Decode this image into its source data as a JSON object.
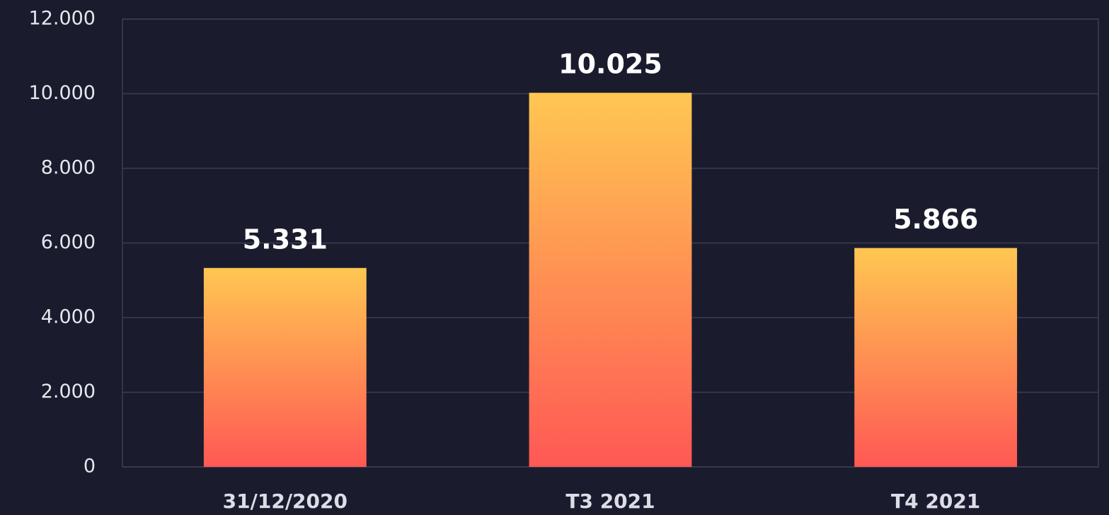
{
  "chart_data": {
    "type": "bar",
    "categories": [
      "31/12/2020",
      "T3 2021",
      "T4 2021"
    ],
    "values": [
      5331,
      10025,
      5866
    ],
    "value_labels": [
      "5.331",
      "10.025",
      "5.866"
    ],
    "ylim": [
      0,
      12000
    ],
    "yticks": [
      0,
      {
        "value": 2000,
        "label": "2.000"
      },
      {
        "value": 4000,
        "label": "4.000"
      },
      {
        "value": 6000,
        "label": "6.000"
      },
      {
        "value": 8000,
        "label": "8.000"
      },
      {
        "value": 10000,
        "label": "10.000"
      },
      {
        "value": 12000,
        "label": "12.000"
      }
    ],
    "grid": true,
    "color": [
      "#ffc752",
      "#ff5854"
    ]
  }
}
